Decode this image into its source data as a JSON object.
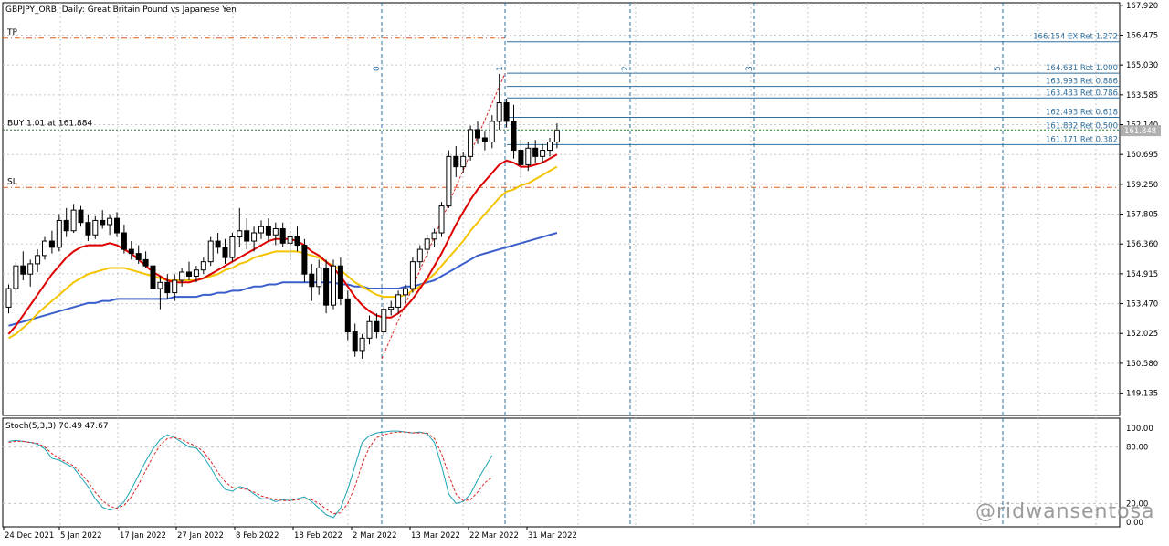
{
  "title": "GBPJPY_ORB, Daily:  Great Britain Pound vs Japanese Yen",
  "stoch_label": "Stoch(5,3,3) 70.49 47.67",
  "watermark": "@ridwansentosa",
  "colors": {
    "bull": "#000000",
    "bear": "#000000",
    "ma_fast": "#dd0000",
    "ma_mid": "#f5c400",
    "ma_slow": "#3a5fcd",
    "fib": "#2f6f9f",
    "grid": "#c8c8c8",
    "level": "#e05a1a",
    "stoch_main": "#1aa3b5",
    "stoch_signal": "#dd2222"
  },
  "levels": {
    "tp": {
      "label": "TP",
      "price": 166.33
    },
    "sl": {
      "label": "SL",
      "price": 159.1
    },
    "buy": {
      "label": "BUY 1.01 at 161.884",
      "price": 161.884
    }
  },
  "current_price": "161.848",
  "price_axis": [
    "167.920",
    "166.475",
    "165.030",
    "163.585",
    "162.140",
    "160.695",
    "159.250",
    "157.805",
    "156.360",
    "154.915",
    "153.470",
    "152.025",
    "150.580",
    "149.135"
  ],
  "stoch_axis": [
    "100.00",
    "80.00",
    "20.00",
    "0.00"
  ],
  "date_axis": [
    "24 Dec 2021",
    "5 Jan 2022",
    "17 Jan 2022",
    "27 Jan 2022",
    "8 Feb 2022",
    "18 Feb 2022",
    "2 Mar 2022",
    "13 Mar 2022",
    "22 Mar 2022",
    "31 Mar 2022"
  ],
  "fib_time_labels": [
    "0",
    "1",
    "2",
    "3",
    "5"
  ],
  "fib_levels": [
    {
      "label": "166.154 EX Ret 1.272",
      "price": 166.154
    },
    {
      "label": "164.631 Ret 1.000",
      "price": 164.631
    },
    {
      "label": "163.993 Ret 0.886",
      "price": 163.993
    },
    {
      "label": "163.433 Ret 0.786",
      "price": 163.433
    },
    {
      "label": "162.493 Ret 0.618",
      "price": 162.493
    },
    {
      "label": "161.832 Ret 0.500",
      "price": 161.832
    },
    {
      "label": "161.171 Ret 0.382",
      "price": 161.171
    }
  ],
  "chart_data": {
    "type": "candlestick",
    "symbol": "GBPJPY",
    "timeframe": "Daily",
    "ylim": [
      148.1,
      168.0
    ],
    "candles": [
      [
        153.3,
        154.4,
        153.0,
        154.2
      ],
      [
        154.2,
        155.5,
        154.0,
        155.3
      ],
      [
        155.3,
        156.0,
        154.6,
        154.9
      ],
      [
        154.9,
        155.6,
        154.3,
        155.4
      ],
      [
        155.4,
        156.1,
        155.0,
        155.8
      ],
      [
        155.8,
        156.7,
        155.6,
        156.5
      ],
      [
        156.5,
        157.0,
        155.9,
        156.2
      ],
      [
        156.2,
        157.8,
        156.0,
        157.5
      ],
      [
        157.5,
        158.1,
        156.7,
        157.0
      ],
      [
        157.0,
        158.3,
        156.9,
        158.0
      ],
      [
        158.0,
        158.2,
        157.2,
        157.4
      ],
      [
        157.4,
        157.8,
        156.5,
        156.8
      ],
      [
        156.8,
        157.7,
        156.6,
        157.5
      ],
      [
        157.5,
        158.0,
        157.1,
        157.3
      ],
      [
        157.3,
        157.8,
        156.8,
        157.6
      ],
      [
        157.6,
        157.9,
        156.7,
        156.9
      ],
      [
        156.9,
        157.3,
        155.9,
        156.1
      ],
      [
        156.1,
        156.5,
        155.6,
        155.9
      ],
      [
        155.9,
        156.3,
        155.4,
        155.6
      ],
      [
        155.6,
        156.0,
        155.2,
        155.3
      ],
      [
        155.3,
        155.6,
        153.9,
        154.2
      ],
      [
        154.2,
        154.8,
        153.2,
        154.5
      ],
      [
        154.5,
        154.9,
        153.7,
        154.0
      ],
      [
        154.0,
        154.9,
        153.6,
        154.6
      ],
      [
        154.6,
        155.2,
        154.3,
        155.0
      ],
      [
        155.0,
        155.5,
        154.6,
        154.8
      ],
      [
        154.8,
        155.3,
        154.5,
        155.1
      ],
      [
        155.1,
        155.7,
        154.9,
        155.5
      ],
      [
        155.5,
        156.7,
        155.3,
        156.5
      ],
      [
        156.5,
        156.9,
        155.9,
        156.2
      ],
      [
        156.2,
        156.6,
        155.4,
        155.7
      ],
      [
        155.7,
        156.9,
        155.5,
        156.7
      ],
      [
        156.7,
        158.1,
        156.2,
        157.0
      ],
      [
        157.0,
        157.6,
        156.1,
        156.5
      ],
      [
        156.5,
        157.2,
        156.0,
        156.9
      ],
      [
        156.9,
        157.5,
        156.6,
        157.2
      ],
      [
        157.2,
        157.6,
        156.5,
        156.8
      ],
      [
        156.8,
        157.4,
        156.3,
        157.1
      ],
      [
        157.1,
        157.4,
        156.2,
        156.4
      ],
      [
        156.4,
        157.0,
        155.6,
        156.7
      ],
      [
        156.7,
        157.2,
        156.0,
        156.3
      ],
      [
        156.3,
        156.6,
        154.5,
        154.9
      ],
      [
        154.9,
        155.4,
        153.6,
        154.3
      ],
      [
        154.3,
        155.6,
        153.9,
        155.2
      ],
      [
        155.2,
        155.6,
        153.0,
        153.4
      ],
      [
        153.4,
        155.6,
        153.2,
        155.3
      ],
      [
        155.3,
        155.7,
        153.4,
        153.7
      ],
      [
        153.7,
        154.1,
        151.7,
        152.1
      ],
      [
        152.1,
        152.5,
        150.9,
        151.2
      ],
      [
        151.2,
        152.0,
        150.8,
        151.8
      ],
      [
        151.8,
        152.9,
        151.5,
        152.6
      ],
      [
        152.6,
        153.0,
        151.8,
        152.1
      ],
      [
        152.1,
        153.5,
        151.9,
        153.2
      ],
      [
        153.2,
        153.6,
        152.9,
        153.3
      ],
      [
        153.3,
        154.1,
        153.0,
        153.9
      ],
      [
        153.9,
        154.4,
        153.5,
        154.2
      ],
      [
        154.2,
        155.7,
        154.0,
        155.5
      ],
      [
        155.5,
        156.3,
        155.2,
        156.1
      ],
      [
        156.1,
        156.8,
        155.7,
        156.6
      ],
      [
        156.6,
        157.1,
        156.2,
        156.9
      ],
      [
        156.9,
        158.4,
        156.7,
        158.2
      ],
      [
        158.2,
        160.9,
        158.1,
        160.6
      ],
      [
        160.6,
        161.1,
        159.6,
        160.1
      ],
      [
        160.1,
        160.8,
        159.8,
        160.6
      ],
      [
        160.6,
        162.1,
        160.4,
        161.9
      ],
      [
        161.9,
        162.3,
        161.2,
        161.5
      ],
      [
        161.5,
        161.8,
        160.9,
        161.3
      ],
      [
        161.3,
        162.6,
        161.0,
        162.3
      ],
      [
        162.3,
        164.6,
        161.9,
        163.2
      ],
      [
        163.2,
        163.4,
        162.0,
        162.3
      ],
      [
        162.3,
        163.1,
        160.5,
        160.9
      ],
      [
        160.9,
        161.4,
        159.6,
        160.2
      ],
      [
        160.2,
        161.3,
        159.9,
        161.0
      ],
      [
        161.0,
        161.4,
        160.3,
        160.6
      ],
      [
        160.6,
        161.2,
        160.3,
        160.9
      ],
      [
        160.9,
        161.5,
        160.6,
        161.3
      ],
      [
        161.3,
        162.2,
        161.0,
        161.85
      ]
    ],
    "ma_fast": [
      152.0,
      152.4,
      152.9,
      153.4,
      153.9,
      154.4,
      154.9,
      155.3,
      155.7,
      156.0,
      156.2,
      156.3,
      156.3,
      156.3,
      156.4,
      156.3,
      156.1,
      155.9,
      155.6,
      155.3,
      155.0,
      154.8,
      154.6,
      154.5,
      154.5,
      154.5,
      154.6,
      154.7,
      154.9,
      155.1,
      155.3,
      155.5,
      155.7,
      155.9,
      156.1,
      156.3,
      156.5,
      156.6,
      156.6,
      156.6,
      156.5,
      156.3,
      156.0,
      155.8,
      155.5,
      155.2,
      154.8,
      154.3,
      153.8,
      153.4,
      153.1,
      152.9,
      152.8,
      152.8,
      153.0,
      153.3,
      153.7,
      154.2,
      154.7,
      155.3,
      155.9,
      156.6,
      157.3,
      157.9,
      158.5,
      159.0,
      159.4,
      159.8,
      160.2,
      160.4,
      160.3,
      160.1,
      160.1,
      160.2,
      160.3,
      160.5,
      160.7
    ],
    "ma_mid": [
      151.8,
      152.0,
      152.3,
      152.6,
      153.0,
      153.3,
      153.6,
      153.9,
      154.2,
      154.5,
      154.7,
      154.9,
      155.0,
      155.1,
      155.2,
      155.2,
      155.2,
      155.1,
      155.0,
      154.9,
      154.8,
      154.7,
      154.6,
      154.6,
      154.6,
      154.6,
      154.6,
      154.7,
      154.8,
      154.9,
      155.1,
      155.2,
      155.4,
      155.5,
      155.7,
      155.8,
      155.9,
      156.0,
      156.0,
      156.0,
      156.0,
      155.9,
      155.8,
      155.7,
      155.5,
      155.3,
      155.1,
      154.8,
      154.5,
      154.3,
      154.1,
      153.9,
      153.8,
      153.8,
      153.8,
      153.9,
      154.1,
      154.3,
      154.6,
      154.9,
      155.3,
      155.7,
      156.1,
      156.5,
      157.0,
      157.4,
      157.8,
      158.2,
      158.6,
      158.9,
      159.0,
      159.2,
      159.3,
      159.5,
      159.7,
      159.9,
      160.1
    ],
    "ma_slow": [
      152.4,
      152.5,
      152.6,
      152.7,
      152.8,
      152.9,
      153.0,
      153.1,
      153.2,
      153.3,
      153.4,
      153.5,
      153.5,
      153.6,
      153.6,
      153.7,
      153.7,
      153.7,
      153.7,
      153.7,
      153.7,
      153.7,
      153.7,
      153.8,
      153.8,
      153.8,
      153.8,
      153.9,
      153.9,
      154.0,
      154.0,
      154.1,
      154.1,
      154.2,
      154.3,
      154.3,
      154.4,
      154.4,
      154.5,
      154.5,
      154.5,
      154.5,
      154.5,
      154.5,
      154.5,
      154.5,
      154.4,
      154.4,
      154.3,
      154.3,
      154.2,
      154.2,
      154.2,
      154.2,
      154.2,
      154.3,
      154.3,
      154.4,
      154.5,
      154.6,
      154.8,
      155.0,
      155.2,
      155.4,
      155.6,
      155.8,
      155.9,
      156.0,
      156.1,
      156.2,
      156.3,
      156.4,
      156.5,
      156.6,
      156.7,
      156.8,
      156.9
    ],
    "stoch_main": [
      86,
      87,
      86,
      85,
      83,
      78,
      68,
      66,
      62,
      58,
      48,
      38,
      25,
      16,
      13,
      15,
      22,
      35,
      50,
      65,
      78,
      88,
      93,
      90,
      85,
      80,
      79,
      70,
      58,
      45,
      35,
      33,
      38,
      36,
      30,
      25,
      25,
      22,
      24,
      23,
      25,
      27,
      22,
      15,
      8,
      5,
      15,
      35,
      60,
      85,
      92,
      95,
      96,
      97,
      97,
      96,
      95,
      96,
      94,
      85,
      60,
      30,
      20,
      22,
      30,
      45,
      58,
      71
    ],
    "stoch_signal": [
      85,
      86,
      86,
      85,
      84,
      80,
      73,
      68,
      64,
      60,
      52,
      43,
      32,
      23,
      17,
      15,
      18,
      27,
      40,
      55,
      70,
      82,
      89,
      90,
      88,
      84,
      81,
      75,
      65,
      53,
      43,
      37,
      36,
      35,
      32,
      28,
      26,
      24,
      23,
      23,
      24,
      25,
      24,
      20,
      14,
      9,
      10,
      20,
      38,
      62,
      80,
      90,
      93,
      95,
      96,
      96,
      95,
      95,
      95,
      89,
      73,
      50,
      30,
      23,
      24,
      32,
      42,
      48
    ],
    "date_ticks": [
      "24 Dec 2021",
      "5 Jan 2022",
      "17 Jan 2022",
      "27 Jan 2022",
      "8 Feb 2022",
      "18 Feb 2022",
      "2 Mar 2022",
      "13 Mar 2022",
      "22 Mar 2022",
      "31 Mar 2022"
    ]
  }
}
